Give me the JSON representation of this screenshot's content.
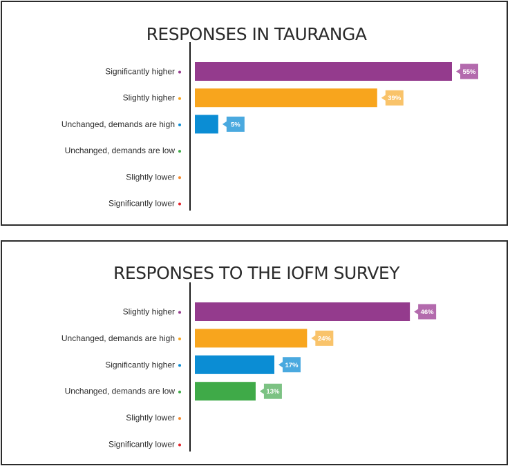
{
  "chart_data": [
    {
      "type": "bar",
      "orientation": "horizontal",
      "title": "RESPONSES IN TAURANGA",
      "categories": [
        "Significantly higher",
        "Slightly higher",
        "Unchanged, demands are high",
        "Unchanged, demands are low",
        "Slightly lower",
        "Significantly lower"
      ],
      "values": [
        55,
        39,
        5,
        null,
        null,
        null
      ],
      "value_labels": [
        "55%",
        "39%",
        "5%",
        "",
        "",
        ""
      ],
      "colors": [
        "#943b8d",
        "#f8a51d",
        "#0b8dd4",
        "#3faa48",
        "#f58a2c",
        "#e3242b"
      ],
      "label_colors": [
        "#b36aad",
        "#f9c36a",
        "#4aa9df",
        "#7cc283",
        "#f7ad6b",
        "#eb666b"
      ],
      "xlim": [
        0,
        62
      ]
    },
    {
      "type": "bar",
      "orientation": "horizontal",
      "title": "RESPONSES TO THE IOFM SURVEY",
      "categories": [
        "Slightly higher",
        "Unchanged, demands are high",
        "Significantly higher",
        "Unchanged, demands are low",
        "Slightly lower",
        "Significantly lower"
      ],
      "values": [
        46,
        24,
        17,
        13,
        null,
        null
      ],
      "value_labels": [
        "46%",
        "24%",
        "17%",
        "13%",
        "",
        ""
      ],
      "colors": [
        "#943b8d",
        "#f8a51d",
        "#0b8dd4",
        "#3faa48",
        "#f58a2c",
        "#e3242b"
      ],
      "label_colors": [
        "#b36aad",
        "#f9c36a",
        "#4aa9df",
        "#7cc283",
        "#f7ad6b",
        "#eb666b"
      ],
      "xlim": [
        0,
        62
      ]
    }
  ]
}
